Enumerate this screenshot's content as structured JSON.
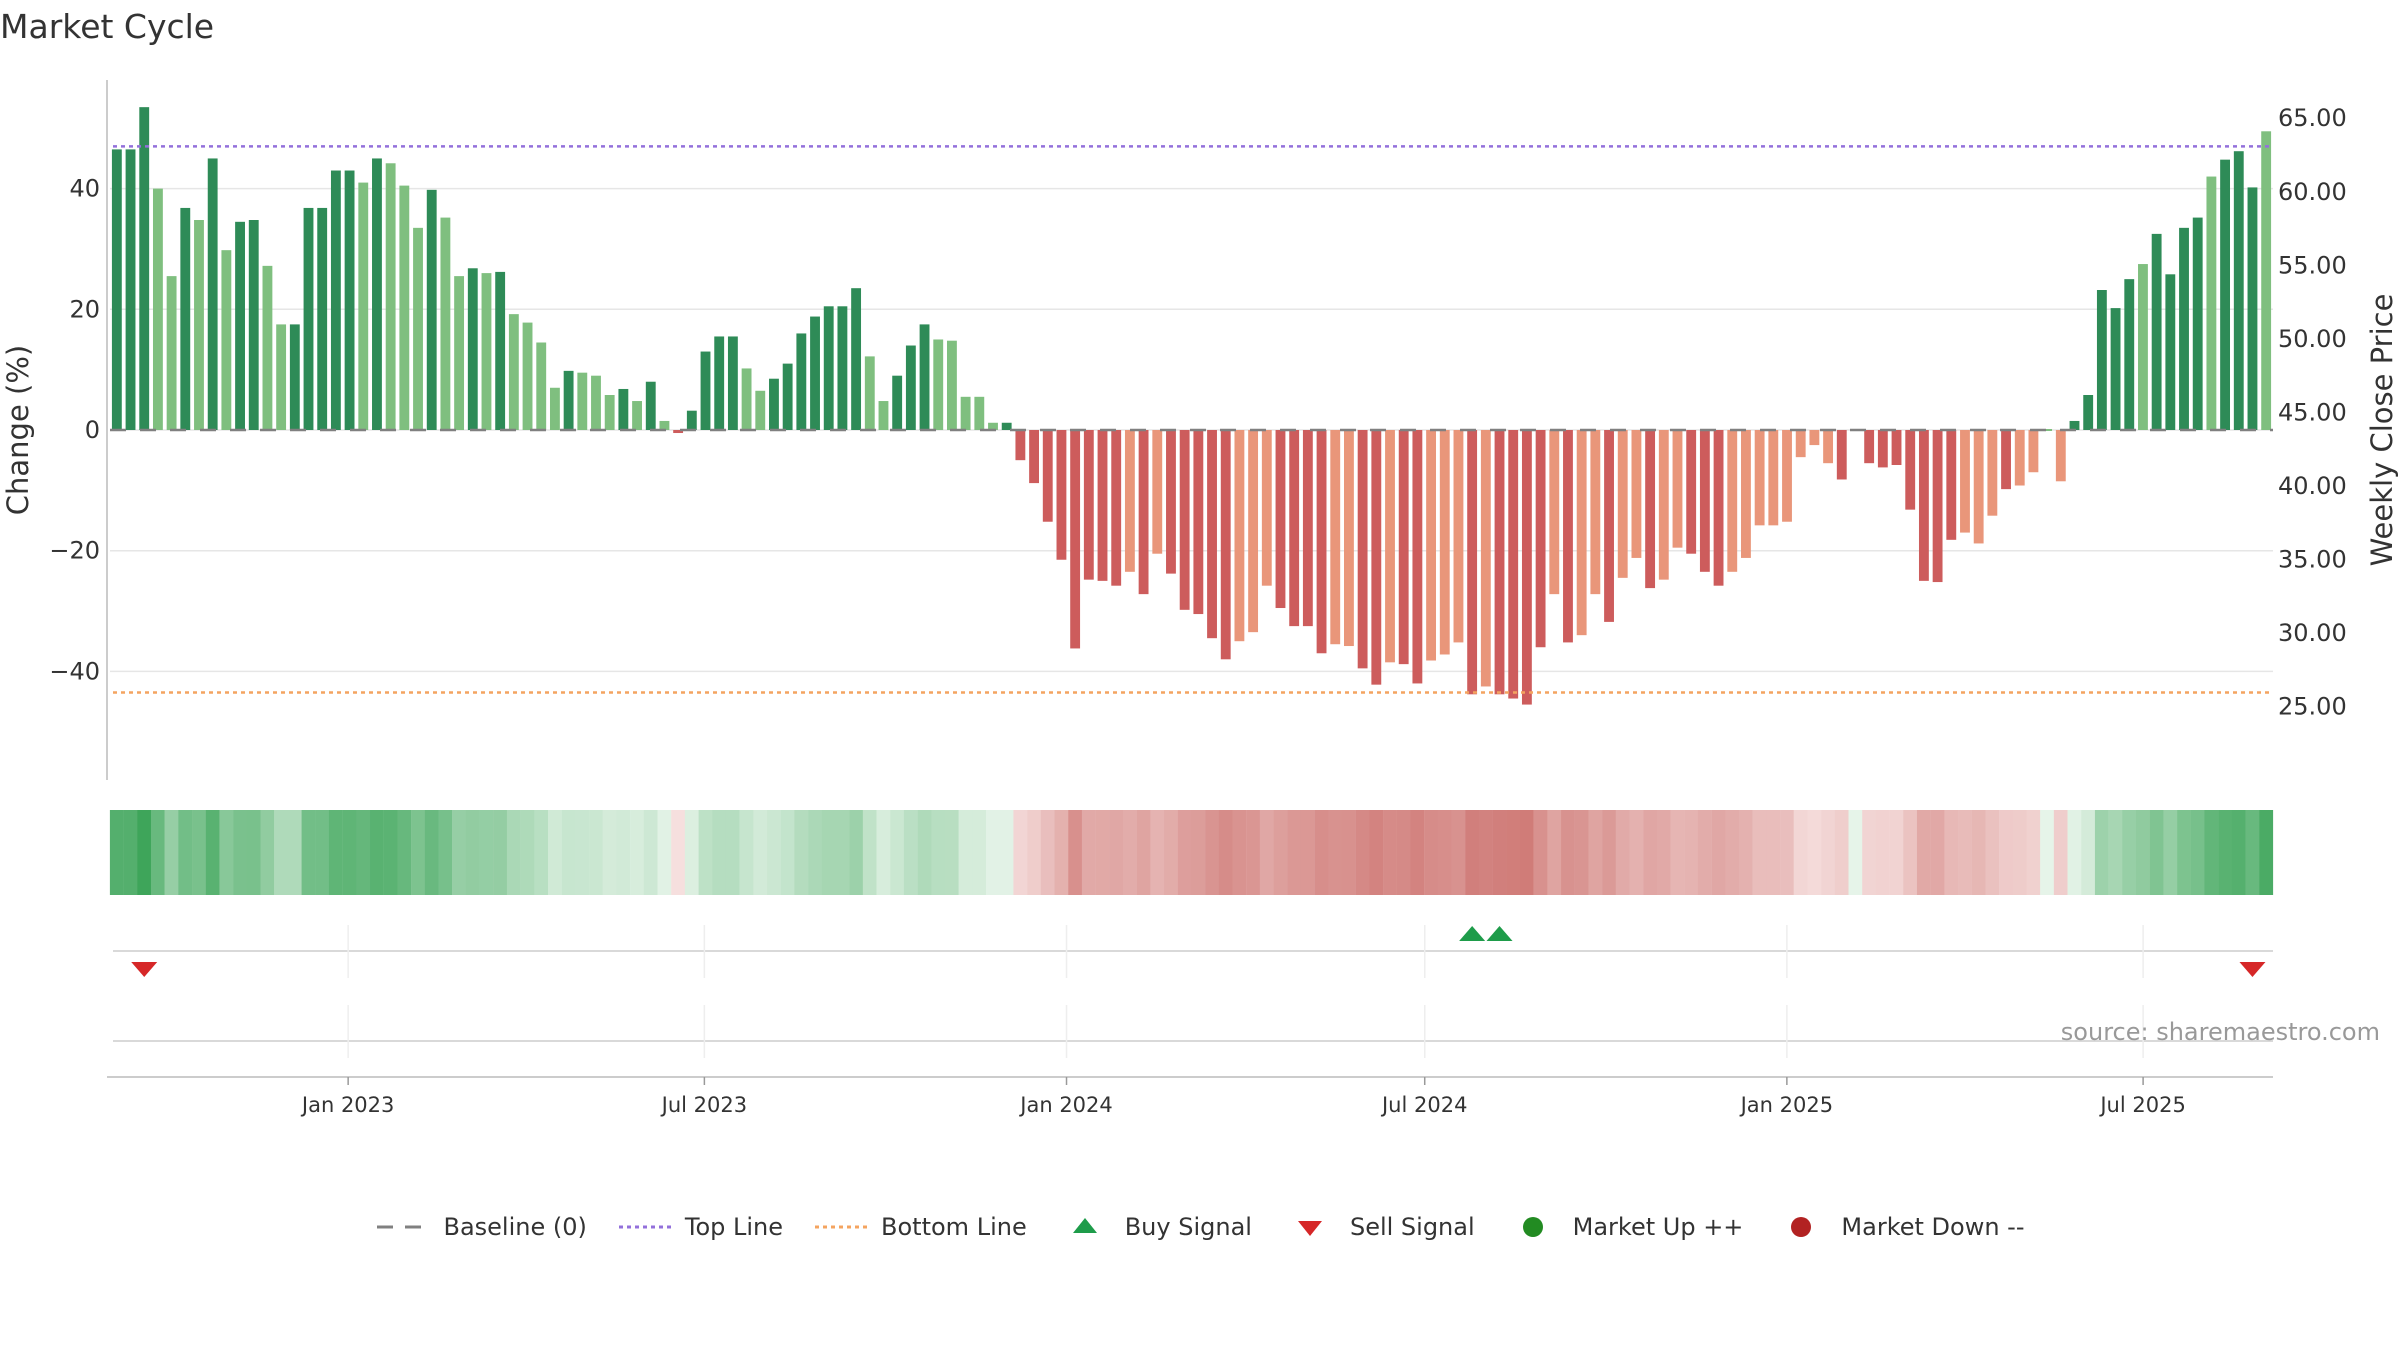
{
  "chart_data": {
    "type": "bar",
    "title": "Market Cycle",
    "ylabel": "Change (%)",
    "y2label": "Weekly Close Price",
    "source": "source: sharemaestro.com",
    "ylim": [
      -58,
      58
    ],
    "yticks": [
      -40,
      -20,
      0,
      20,
      40
    ],
    "ytick_labels": [
      "−40",
      "−20",
      "0",
      "20",
      "40"
    ],
    "y2lim": [
      20.0,
      67.6
    ],
    "y2ticks": [
      25,
      30,
      35,
      40,
      45,
      50,
      55,
      60,
      65
    ],
    "y2tick_labels": [
      "25.00",
      "30.00",
      "35.00",
      "40.00",
      "45.00",
      "50.00",
      "55.00",
      "60.00",
      "65.00"
    ],
    "x_start": "2022-09-02",
    "x_end": "2025-09-05",
    "xticks": [
      "2023-01-01",
      "2023-07-01",
      "2024-01-01",
      "2024-07-01",
      "2025-01-01",
      "2025-07-01"
    ],
    "xtick_labels": [
      "Jan 2023",
      "Jul 2023",
      "Jan 2024",
      "Jul 2024",
      "Jan 2025",
      "Jul 2025"
    ],
    "top_line": 47,
    "bottom_line": -43.5,
    "baseline": 0,
    "weeks": 157,
    "values": [
      46.5,
      46.5,
      53.5,
      40,
      25.5,
      36.8,
      34.8,
      45,
      29.8,
      34.5,
      34.8,
      27.2,
      17.5,
      17.5,
      36.8,
      36.8,
      43,
      43,
      41,
      45,
      44.2,
      40.5,
      33.5,
      39.8,
      35.2,
      25.5,
      26.8,
      26,
      26.2,
      19.2,
      17.8,
      14.5,
      7,
      9.8,
      9.5,
      9,
      5.8,
      6.8,
      4.8,
      8,
      1.5,
      -0.5,
      3.2,
      13,
      15.5,
      15.5,
      10.2,
      6.5,
      8.5,
      11,
      16,
      18.8,
      20.5,
      20.5,
      23.5,
      12.2,
      4.8,
      9,
      14,
      17.5,
      15,
      14.8,
      5.5,
      5.5,
      1.2,
      1.2,
      -5,
      -8.8,
      -15.2,
      -21.5,
      -36.2,
      -24.8,
      -25,
      -25.8,
      -23.5,
      -27.2,
      -20.5,
      -23.8,
      -29.8,
      -30.5,
      -34.5,
      -38,
      -35,
      -33.5,
      -25.8,
      -29.5,
      -32.5,
      -32.5,
      -37,
      -35.5,
      -35.8,
      -39.5,
      -42.2,
      -38.5,
      -38.8,
      -42,
      -38.2,
      -37.2,
      -35.2,
      -43.8,
      -42.5,
      -43.8,
      -44.5,
      -45.5,
      -36,
      -27.2,
      -35.2,
      -34,
      -27.2,
      -31.8,
      -24.5,
      -21.2,
      -26.2,
      -24.8,
      -19.5,
      -20.5,
      -23.5,
      -25.8,
      -23.5,
      -21.2,
      -15.8,
      -15.8,
      -15.2,
      -4.5,
      -2.5,
      -5.5,
      -8.2,
      0,
      -5.5,
      -6.2,
      -5.8,
      -13.2,
      -25,
      -25.2,
      -18.2,
      -17,
      -18.8,
      -14.2,
      -9.8,
      -9.2,
      -7,
      0,
      -8.5,
      1.5,
      5.8,
      23.2,
      20.2,
      25,
      27.5,
      32.5,
      25.8,
      33.5,
      35.2,
      42,
      44.8,
      46.2,
      40.2,
      49.5
    ],
    "shade": [
      0,
      0,
      0,
      1,
      1,
      0,
      1,
      0,
      1,
      0,
      0,
      1,
      1,
      0,
      0,
      0,
      0,
      0,
      1,
      0,
      1,
      1,
      1,
      0,
      1,
      1,
      0,
      1,
      0,
      1,
      1,
      1,
      1,
      0,
      1,
      1,
      1,
      0,
      1,
      0,
      1,
      0,
      0,
      0,
      0,
      0,
      1,
      1,
      0,
      0,
      0,
      0,
      0,
      0,
      0,
      1,
      1,
      0,
      0,
      0,
      1,
      1,
      1,
      1,
      1,
      0,
      0,
      0,
      0,
      0,
      0,
      0,
      0,
      0,
      1,
      0,
      1,
      0,
      0,
      0,
      0,
      0,
      1,
      1,
      1,
      0,
      0,
      0,
      0,
      1,
      1,
      0,
      0,
      1,
      0,
      0,
      1,
      1,
      1,
      0,
      1,
      0,
      0,
      0,
      0,
      1,
      0,
      1,
      1,
      0,
      1,
      1,
      0,
      1,
      1,
      0,
      0,
      0,
      1,
      1,
      1,
      1,
      1,
      1,
      1,
      1,
      0,
      0,
      0,
      0,
      0,
      0,
      0,
      0,
      0,
      1,
      1,
      1,
      0,
      1,
      1,
      1,
      1,
      0,
      0,
      0,
      0,
      0,
      1,
      0,
      0,
      0,
      0,
      1,
      0,
      0,
      0,
      1,
      0
    ],
    "buy_signals": [
      99,
      101
    ],
    "sell_signals": [
      2,
      156
    ],
    "colors": {
      "up_dark": "#2e8b57",
      "up_light": "#7fbf7f",
      "down_dark": "#cd5c5c",
      "down_light": "#e9967a",
      "top_line": "#9370db",
      "bottom_line": "#f4a460",
      "baseline": "#808080",
      "buy": "#1e9c4a",
      "sell": "#d62728",
      "market_up": "#228b22",
      "market_down": "#b22222"
    }
  },
  "legend": {
    "baseline": "Baseline (0)",
    "top_line": "Top Line",
    "bottom_line": "Bottom Line",
    "buy_signal": "Buy Signal",
    "sell_signal": "Sell Signal",
    "market_up": "Market Up ++",
    "market_down": "Market Down --"
  }
}
